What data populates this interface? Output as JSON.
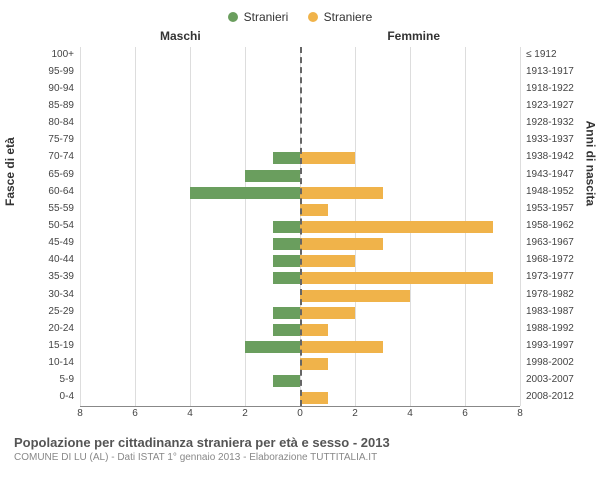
{
  "legend": {
    "male": {
      "label": "Stranieri",
      "color": "#6a9e5e"
    },
    "female": {
      "label": "Straniere",
      "color": "#f0b34a"
    }
  },
  "headers": {
    "left": "Maschi",
    "right": "Femmine"
  },
  "y_titles": {
    "left": "Fasce di età",
    "right": "Anni di nascita"
  },
  "axis": {
    "max": 8,
    "ticks": [
      8,
      6,
      4,
      2,
      0,
      2,
      4,
      6,
      8
    ],
    "grid_color": "#ddd",
    "center_dash_color": "#666"
  },
  "rows": [
    {
      "age": "100+",
      "birth": "≤ 1912",
      "male": 0,
      "female": 0
    },
    {
      "age": "95-99",
      "birth": "1913-1917",
      "male": 0,
      "female": 0
    },
    {
      "age": "90-94",
      "birth": "1918-1922",
      "male": 0,
      "female": 0
    },
    {
      "age": "85-89",
      "birth": "1923-1927",
      "male": 0,
      "female": 0
    },
    {
      "age": "80-84",
      "birth": "1928-1932",
      "male": 0,
      "female": 0
    },
    {
      "age": "75-79",
      "birth": "1933-1937",
      "male": 0,
      "female": 0
    },
    {
      "age": "70-74",
      "birth": "1938-1942",
      "male": 1,
      "female": 2
    },
    {
      "age": "65-69",
      "birth": "1943-1947",
      "male": 2,
      "female": 0
    },
    {
      "age": "60-64",
      "birth": "1948-1952",
      "male": 4,
      "female": 3
    },
    {
      "age": "55-59",
      "birth": "1953-1957",
      "male": 0,
      "female": 1
    },
    {
      "age": "50-54",
      "birth": "1958-1962",
      "male": 1,
      "female": 7
    },
    {
      "age": "45-49",
      "birth": "1963-1967",
      "male": 1,
      "female": 3
    },
    {
      "age": "40-44",
      "birth": "1968-1972",
      "male": 1,
      "female": 2
    },
    {
      "age": "35-39",
      "birth": "1973-1977",
      "male": 1,
      "female": 7
    },
    {
      "age": "30-34",
      "birth": "1978-1982",
      "male": 0,
      "female": 4
    },
    {
      "age": "25-29",
      "birth": "1983-1987",
      "male": 1,
      "female": 2
    },
    {
      "age": "20-24",
      "birth": "1988-1992",
      "male": 1,
      "female": 1
    },
    {
      "age": "15-19",
      "birth": "1993-1997",
      "male": 2,
      "female": 3
    },
    {
      "age": "10-14",
      "birth": "1998-2002",
      "male": 0,
      "female": 1
    },
    {
      "age": "5-9",
      "birth": "2003-2007",
      "male": 1,
      "female": 0
    },
    {
      "age": "0-4",
      "birth": "2008-2012",
      "male": 0,
      "female": 1
    }
  ],
  "title": "Popolazione per cittadinanza straniera per età e sesso - 2013",
  "subtitle": "COMUNE DI LU (AL) - Dati ISTAT 1° gennaio 2013 - Elaborazione TUTTITALIA.IT",
  "colors": {
    "background": "#ffffff",
    "text": "#333333",
    "muted": "#888888"
  },
  "typography": {
    "legend_fontsize": 12,
    "label_fontsize": 10,
    "title_fontsize": 13
  }
}
